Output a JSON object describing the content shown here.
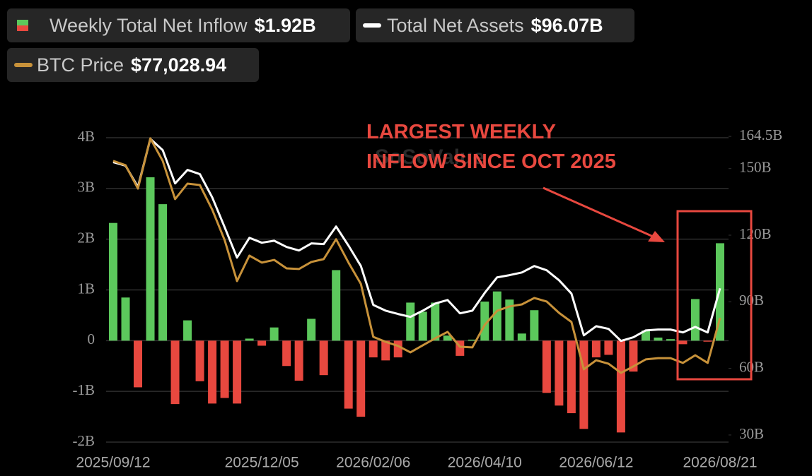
{
  "chart_data": {
    "type": "bar-line",
    "watermark": "SoSoValue",
    "annotation": [
      "LARGEST WEEKLY",
      "INFLOW SINCE OCT 2025"
    ],
    "categories": [
      "2025/09/12",
      null,
      null,
      null,
      null,
      null,
      null,
      null,
      null,
      null,
      null,
      null,
      "2025/12/05",
      null,
      null,
      null,
      null,
      null,
      null,
      null,
      null,
      "2026/02/06",
      null,
      null,
      null,
      null,
      null,
      null,
      null,
      null,
      "2026/04/10",
      null,
      null,
      null,
      null,
      null,
      null,
      null,
      null,
      "2026/06/12",
      null,
      null,
      null,
      null,
      null,
      null,
      null,
      null,
      null,
      "2026/08/21"
    ],
    "ylim": [
      -2,
      4
    ],
    "yticks": [
      {
        "value": -2,
        "label": "-2B"
      },
      {
        "value": -1,
        "label": "-1B"
      },
      0,
      {
        "value": 1,
        "label": "1B"
      },
      {
        "value": 2,
        "label": "2B"
      },
      {
        "value": 3,
        "label": "3B"
      },
      {
        "value": 4,
        "label": "4B"
      }
    ],
    "y2lim": [
      26.8,
      163.9
    ],
    "y2ticks": [
      {
        "value": 30,
        "label": "30B"
      },
      {
        "value": 60,
        "label": "60B"
      },
      {
        "value": 90,
        "label": "90B"
      },
      {
        "value": 120,
        "label": "120B"
      },
      {
        "value": 150,
        "label": "150B"
      },
      {
        "value": 164.5,
        "label": "164.5B"
      }
    ],
    "y3lim": [
      47000,
      120600
    ],
    "grid": true,
    "series": [
      {
        "name": "Weekly Total Net Inflow",
        "latest_label": "$1.92B",
        "kind": "bar",
        "color_positive": "#5cc85c",
        "color_negative": "#e8483f",
        "values": [
          2.32,
          0.85,
          -0.92,
          3.22,
          2.69,
          -1.25,
          0.4,
          -0.8,
          -1.24,
          -1.13,
          -1.24,
          0.04,
          -0.1,
          0.26,
          -0.5,
          -0.79,
          0.43,
          -0.68,
          1.39,
          -1.34,
          -1.5,
          -0.33,
          -0.39,
          -0.33,
          0.75,
          0.57,
          0.75,
          0.1,
          -0.3,
          0.02,
          0.77,
          0.97,
          0.81,
          0.14,
          0.6,
          -1.03,
          -1.28,
          -1.43,
          -1.74,
          -0.33,
          -0.28,
          -1.81,
          -0.61,
          0.2,
          0.06,
          0.03,
          -0.07,
          0.82,
          -0.02,
          1.92
        ]
      },
      {
        "name": "Total Net Assets",
        "latest_label": "$96.07B",
        "kind": "line",
        "axis": "y2",
        "color": "#ffffff",
        "values": [
          152.9,
          151.3,
          141.7,
          163.4,
          158.3,
          143.3,
          149.4,
          147.5,
          137,
          123.6,
          109.9,
          118.8,
          116.6,
          117.5,
          114.7,
          113.1,
          116.3,
          116,
          123.9,
          115.3,
          106.1,
          88.6,
          86,
          84.5,
          83.2,
          86,
          89.2,
          90.8,
          84.8,
          86,
          94,
          101,
          102,
          103.2,
          106.1,
          104.2,
          99.7,
          93.7,
          74.9,
          79,
          77.8,
          72.4,
          74,
          77.1,
          77.5,
          77.5,
          76.2,
          78.7,
          76.2,
          96.07
        ]
      },
      {
        "name": "BTC Price",
        "latest_label": "$77,028.94",
        "kind": "line",
        "axis": "y3",
        "color": "#c8923a",
        "values": [
          115000,
          113950,
          108300,
          120450,
          115000,
          105750,
          109500,
          109150,
          103200,
          95850,
          85950,
          92100,
          90400,
          91050,
          89000,
          88850,
          90550,
          91250,
          96050,
          90400,
          85250,
          72450,
          71250,
          70250,
          68700,
          70400,
          72100,
          73650,
          70050,
          69900,
          75350,
          78750,
          79800,
          80300,
          81850,
          81000,
          78250,
          76050,
          64600,
          66800,
          65950,
          63750,
          65300,
          67000,
          67300,
          67300,
          66150,
          68000,
          66150,
          77028.94
        ]
      }
    ]
  }
}
